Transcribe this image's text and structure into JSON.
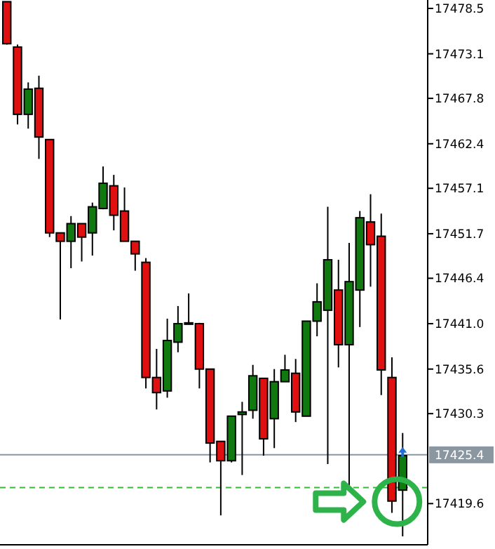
{
  "chart_data": {
    "type": "candlestick",
    "categories": [
      null,
      null,
      null,
      null,
      null,
      null,
      null,
      null,
      null,
      null,
      null,
      null,
      null,
      null,
      null,
      null,
      null,
      null,
      null,
      null,
      null,
      null,
      null,
      null,
      null,
      null,
      null,
      null,
      null,
      null,
      null,
      null,
      null,
      null,
      null,
      null,
      null,
      null
    ],
    "ohlc": [
      [
        17479.3,
        17479.3,
        17474.2,
        17474.3
      ],
      [
        17473.9,
        17474.2,
        17464.7,
        17465.9
      ],
      [
        17465.9,
        17469.7,
        17464.2,
        17468.9
      ],
      [
        17469.0,
        17470.5,
        17460.6,
        17463.2
      ],
      [
        17462.9,
        17462.9,
        17451.3,
        17451.8
      ],
      [
        17451.8,
        17451.8,
        17441.5,
        17450.8
      ],
      [
        17450.8,
        17453.8,
        17447.6,
        17452.9
      ],
      [
        17452.9,
        17452.9,
        17448.4,
        17451.3
      ],
      [
        17451.8,
        17455.4,
        17449.1,
        17454.9
      ],
      [
        17454.7,
        17459.7,
        17454.6,
        17457.7
      ],
      [
        17457.4,
        17458.7,
        17452.1,
        17453.9
      ],
      [
        17454.4,
        17457.2,
        17450.8,
        17450.8
      ],
      [
        17450.8,
        17450.8,
        17447.3,
        17449.3
      ],
      [
        17448.3,
        17448.8,
        17433.3,
        17434.6
      ],
      [
        17434.6,
        17438.0,
        17430.8,
        17432.8
      ],
      [
        17433.0,
        17441.6,
        17432.2,
        17439.0
      ],
      [
        17438.8,
        17443.1,
        17437.6,
        17441.0
      ],
      [
        17441.0,
        17444.6,
        17441.0,
        17441.1
      ],
      [
        17441.0,
        17441.1,
        17433.3,
        17435.6
      ],
      [
        17435.6,
        17435.6,
        17424.5,
        17426.8
      ],
      [
        17427.0,
        17427.0,
        17418.2,
        17424.7
      ],
      [
        17424.7,
        17430.0,
        17424.5,
        17430.0
      ],
      [
        17430.2,
        17431.7,
        17423.0,
        17430.5
      ],
      [
        17430.7,
        17436.1,
        17429.7,
        17434.8
      ],
      [
        17434.5,
        17434.5,
        17425.3,
        17427.3
      ],
      [
        17429.7,
        17435.6,
        17426.2,
        17434.1
      ],
      [
        17434.1,
        17437.3,
        17434.1,
        17435.5
      ],
      [
        17435.1,
        17436.8,
        17429.3,
        17430.5
      ],
      [
        17430.0,
        17441.3,
        17430.0,
        17441.3
      ],
      [
        17441.3,
        17445.8,
        17439.5,
        17443.6
      ],
      [
        17442.6,
        17454.9,
        17424.3,
        17448.6
      ],
      [
        17445.0,
        17448.6,
        17435.8,
        17438.5
      ],
      [
        17438.5,
        17450.6,
        17421.5,
        17446.0
      ],
      [
        17445.0,
        17454.4,
        17440.6,
        17453.6
      ],
      [
        17453.1,
        17456.4,
        17445.4,
        17450.4
      ],
      [
        17451.4,
        17454.1,
        17432.5,
        17435.5
      ],
      [
        17434.6,
        17437.0,
        17418.5,
        17419.9
      ],
      [
        17421.2,
        17428.0,
        17415.7,
        17425.3
      ]
    ],
    "colors": [
      "#e01010",
      "#e01010",
      "#107a10",
      "#e01010",
      "#e01010",
      "#e01010",
      "#107a10",
      "#e01010",
      "#107a10",
      "#107a10",
      "#e01010",
      "#e01010",
      "#e01010",
      "#e01010",
      "#e01010",
      "#107a10",
      "#107a10",
      "#107a10",
      "#e01010",
      "#e01010",
      "#e01010",
      "#107a10",
      "#107a10",
      "#107a10",
      "#e01010",
      "#107a10",
      "#107a10",
      "#e01010",
      "#107a10",
      "#107a10",
      "#107a10",
      "#e01010",
      "#107a10",
      "#107a10",
      "#e01010",
      "#e01010",
      "#e01010",
      "#107a10"
    ],
    "ylim": [
      17414.7,
      17479.5
    ],
    "yticks": [
      {
        "value": 17478.5,
        "label": "17478.5"
      },
      {
        "value": 17473.1,
        "label": "17473.1"
      },
      {
        "value": 17467.8,
        "label": "17467.8"
      },
      {
        "value": 17462.4,
        "label": "17462.4"
      },
      {
        "value": 17457.1,
        "label": "17457.1"
      },
      {
        "value": 17451.7,
        "label": "17451.7"
      },
      {
        "value": 17446.4,
        "label": "17446.4"
      },
      {
        "value": 17441.0,
        "label": "17441.0"
      },
      {
        "value": 17435.6,
        "label": "17435.6"
      },
      {
        "value": 17430.3,
        "label": "17430.3"
      },
      {
        "value": 17419.6,
        "label": "17419.6"
      }
    ],
    "ref_lines": [
      {
        "axis": "y",
        "value": 17425.4,
        "label": "17425.4",
        "color": "#8a96a0",
        "line_style": "solid"
      },
      {
        "axis": "y",
        "value": 17421.5,
        "label": null,
        "color": "#33bb33",
        "line_style": "dashed"
      }
    ],
    "tick_labels": "y",
    "grid": false
  }
}
